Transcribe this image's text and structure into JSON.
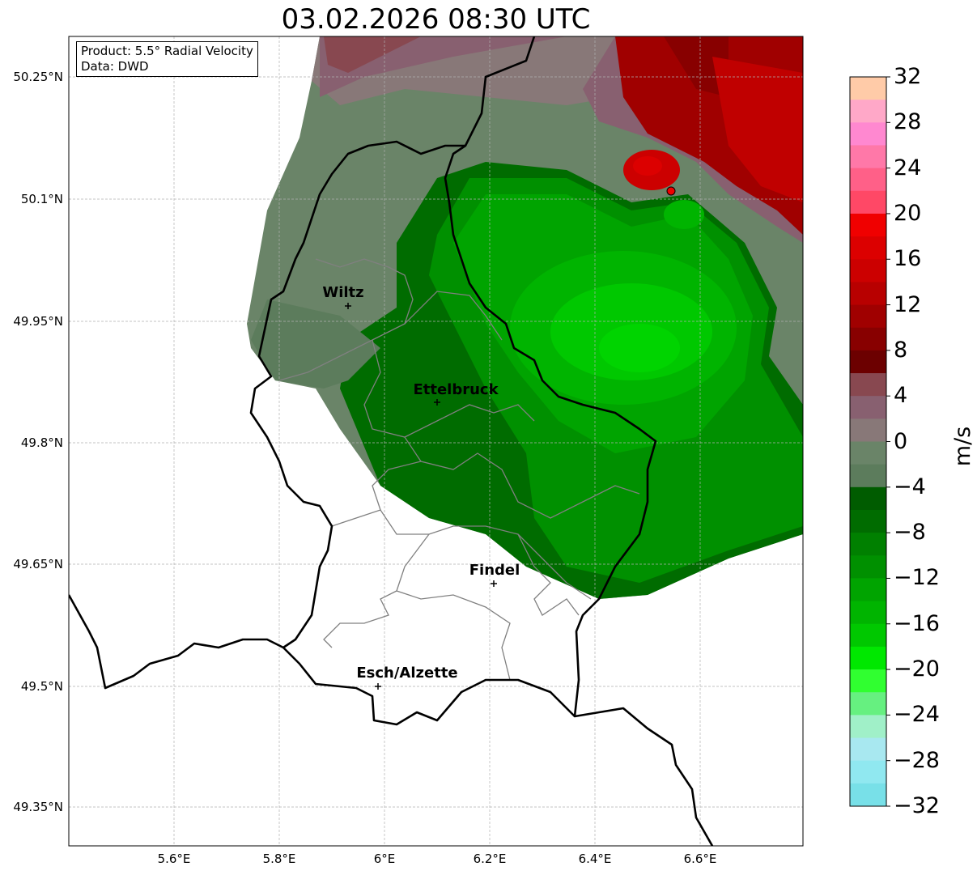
{
  "title": "03.02.2026 08:30 UTC",
  "legend": {
    "product": "Product: 5.5° Radial Velocity",
    "source": "Data: DWD"
  },
  "axes": {
    "lat_ticks": [
      "50.25°N",
      "50.1°N",
      "49.95°N",
      "49.8°N",
      "49.65°N",
      "49.5°N",
      "49.35°N"
    ],
    "lon_ticks": [
      "5.6°E",
      "5.8°E",
      "6°E",
      "6.2°E",
      "6.4°E",
      "6.6°E"
    ]
  },
  "cities": [
    "Wiltz",
    "Ettelbruck",
    "Findel",
    "Esch/Alzette"
  ],
  "colorbar": {
    "label": "m/s",
    "ticks": [
      "32",
      "28",
      "24",
      "20",
      "16",
      "12",
      "8",
      "4",
      "0",
      "−4",
      "−8",
      "−12",
      "−16",
      "−20",
      "−24",
      "−28",
      "−32"
    ],
    "range": [
      -32,
      32
    ],
    "colors_top_to_bottom": [
      "#ffcba8",
      "#ffa8c8",
      "#ff88d0",
      "#ff78a8",
      "#ff6088",
      "#ff4866",
      "#f00000",
      "#dc0000",
      "#cc0000",
      "#b80000",
      "#a00000",
      "#880000",
      "#6c0000",
      "#884850",
      "#886070",
      "#887878",
      "#6a8468",
      "#5c7c5c",
      "#005c00",
      "#006c00",
      "#008000",
      "#009000",
      "#00a400",
      "#00b400",
      "#00c800",
      "#00e800",
      "#30ff30",
      "#66f080",
      "#a0f0c8",
      "#a8e8f0",
      "#90e8f0",
      "#78e0e8"
    ]
  }
}
